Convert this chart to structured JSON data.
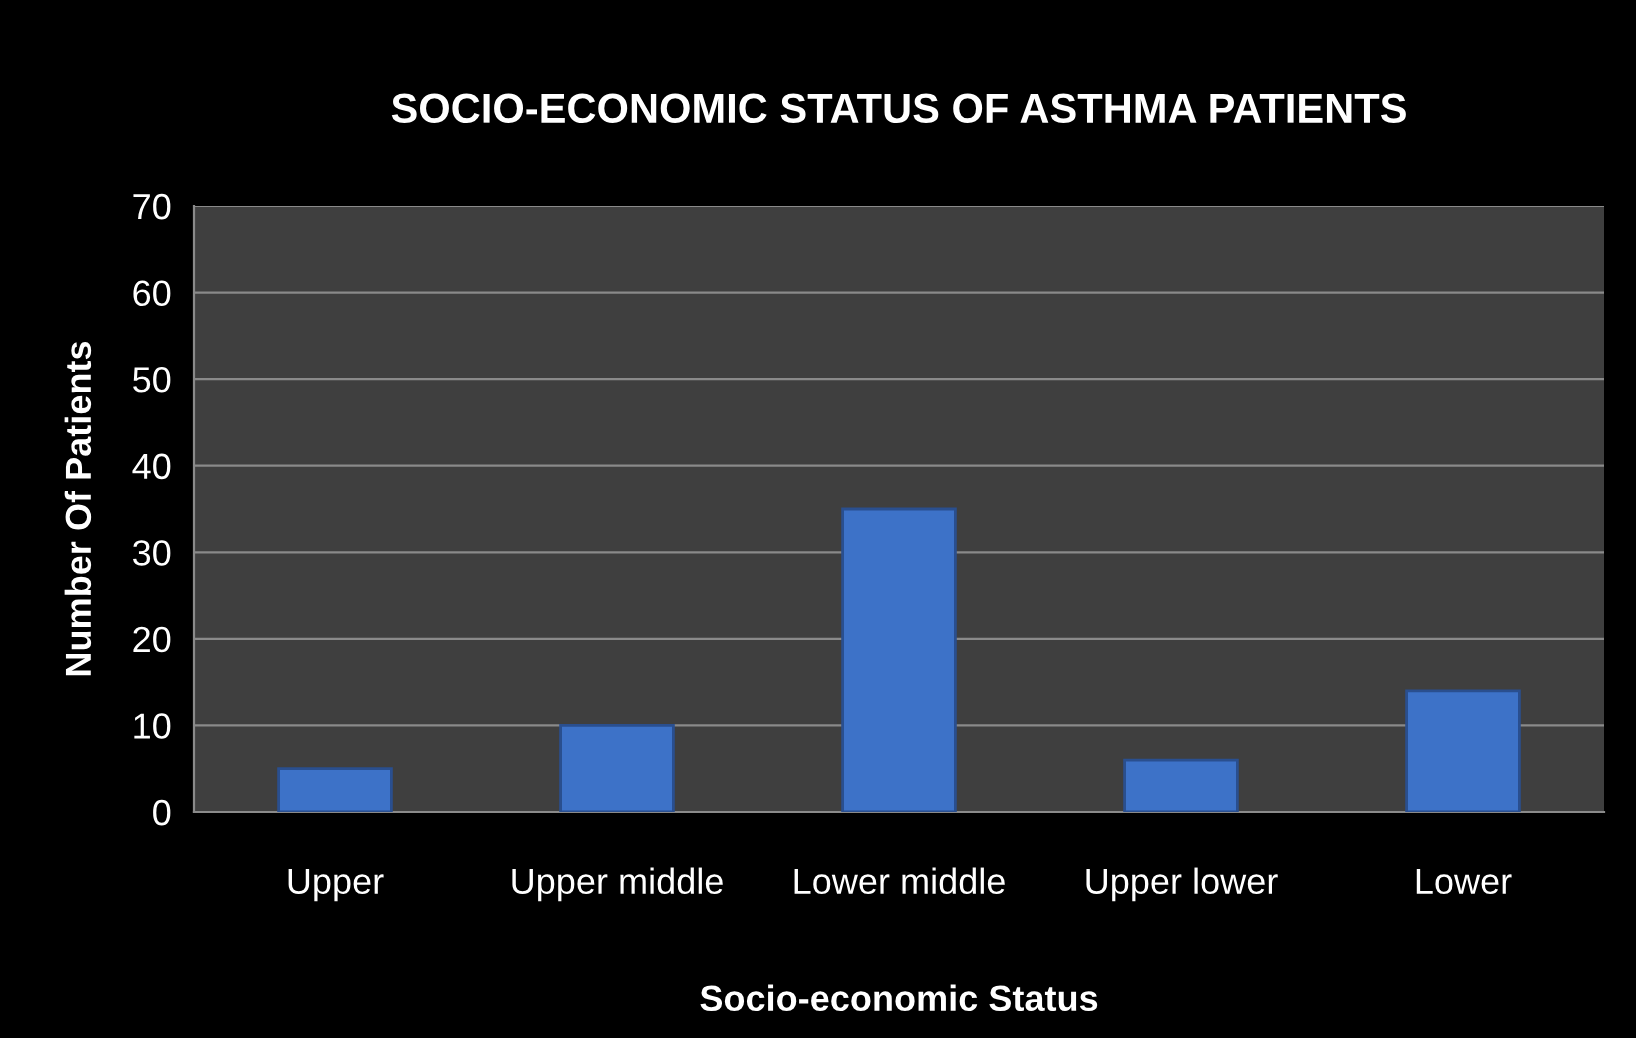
{
  "chart_data": {
    "type": "bar",
    "title": "SOCIO-ECONOMIC STATUS OF ASTHMA PATIENTS",
    "xlabel": "Socio-economic Status",
    "ylabel": "Number Of Patients",
    "categories": [
      "Upper",
      "Upper middle",
      "Lower middle",
      "Upper lower",
      "Lower"
    ],
    "values": [
      5,
      10,
      35,
      6,
      14
    ],
    "color": "#3d72c8",
    "ylim": [
      0,
      70
    ],
    "yticks": [
      0,
      10,
      20,
      30,
      40,
      50,
      60,
      70
    ],
    "grid": "y"
  }
}
